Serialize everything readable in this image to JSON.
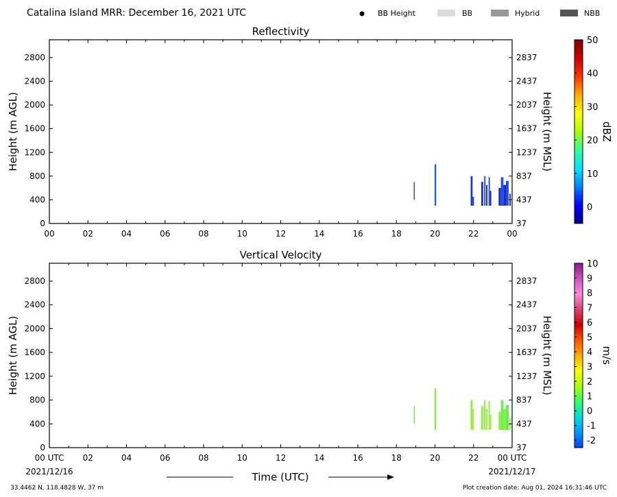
{
  "header": {
    "title": "Catalina Island MRR:  December 16, 2021 UTC",
    "legend": [
      {
        "label": "BB Height",
        "kind": "dot",
        "color": "#000000"
      },
      {
        "label": "BB",
        "kind": "swatch",
        "color": "#dcdcdc"
      },
      {
        "label": "Hybrid",
        "kind": "swatch",
        "color": "#999999"
      },
      {
        "label": "NBB",
        "kind": "swatch",
        "color": "#555555"
      }
    ]
  },
  "footer": {
    "left_time": "00 UTC",
    "left_date": "2021/12/16",
    "right_time": "00 UTC",
    "right_date": "2021/12/17",
    "xlabel": "Time (UTC)",
    "location": "33.4462 N, 118.4828 W, 37 m",
    "created": "Plot creation date: Aug 01, 2024 16:31:46 UTC"
  },
  "chart_data": [
    {
      "type": "heatmap",
      "title": "Reflectivity",
      "ylabel": "Height (m AGL)",
      "y2label": "Height (m MSL)",
      "xlim": [
        0,
        24
      ],
      "ylim": [
        0,
        3100
      ],
      "x_ticks": [
        "00",
        "02",
        "04",
        "06",
        "08",
        "10",
        "12",
        "14",
        "16",
        "18",
        "20",
        "22",
        "00"
      ],
      "y_ticks": [
        0,
        400,
        800,
        1200,
        1600,
        2000,
        2400,
        2800
      ],
      "y2_ticks": [
        "37",
        "437",
        "837",
        "1237",
        "1637",
        "2037",
        "2437",
        "2837"
      ],
      "colorbar": {
        "label": "dBZ",
        "min": -5,
        "max": 50,
        "ticks": [
          0,
          10,
          20,
          30,
          40,
          50
        ],
        "colors": [
          "#00008b",
          "#0000ff",
          "#0080ff",
          "#00e5ff",
          "#33ff99",
          "#aaff00",
          "#ffff00",
          "#ffaa00",
          "#ff3300",
          "#cc0000",
          "#800000"
        ]
      },
      "series": [
        {
          "start": 18.9,
          "end": 18.95,
          "base": 400,
          "top": 700,
          "color": "#1f3fd6"
        },
        {
          "start": 19.98,
          "end": 20.06,
          "base": 300,
          "top": 1000,
          "color": "#1560e0"
        },
        {
          "start": 21.85,
          "end": 21.95,
          "base": 300,
          "top": 800,
          "color": "#1d3ad0"
        },
        {
          "start": 21.95,
          "end": 22.02,
          "base": 300,
          "top": 450,
          "color": "#1d3ad0"
        },
        {
          "start": 22.4,
          "end": 22.5,
          "base": 300,
          "top": 700,
          "color": "#1d2ec8"
        },
        {
          "start": 22.55,
          "end": 22.62,
          "base": 300,
          "top": 800,
          "color": "#2050e8"
        },
        {
          "start": 22.65,
          "end": 22.72,
          "base": 300,
          "top": 650,
          "color": "#1d2ec8"
        },
        {
          "start": 22.78,
          "end": 22.85,
          "base": 300,
          "top": 780,
          "color": "#2050e8"
        },
        {
          "start": 22.85,
          "end": 22.92,
          "base": 300,
          "top": 550,
          "color": "#1d2ec8"
        },
        {
          "start": 23.3,
          "end": 23.42,
          "base": 300,
          "top": 600,
          "color": "#1d2ec8"
        },
        {
          "start": 23.42,
          "end": 23.55,
          "base": 300,
          "top": 780,
          "color": "#2050e8"
        },
        {
          "start": 23.55,
          "end": 23.68,
          "base": 300,
          "top": 650,
          "color": "#1d2ec8"
        },
        {
          "start": 23.68,
          "end": 23.82,
          "base": 300,
          "top": 720,
          "color": "#2050e8"
        },
        {
          "start": 23.86,
          "end": 23.93,
          "base": 300,
          "top": 500,
          "color": "#1d2ec8"
        }
      ]
    },
    {
      "type": "heatmap",
      "title": "Vertical Velocity",
      "ylabel": "Height (m AGL)",
      "y2label": "Height (m MSL)",
      "xlim": [
        0,
        24
      ],
      "ylim": [
        0,
        3100
      ],
      "x_ticks": [
        "00 UTC",
        "02",
        "04",
        "06",
        "08",
        "10",
        "12",
        "14",
        "16",
        "18",
        "20",
        "22",
        "00 UTC"
      ],
      "y_ticks": [
        0,
        400,
        800,
        1200,
        1600,
        2000,
        2400,
        2800
      ],
      "y2_ticks": [
        "37",
        "437",
        "837",
        "1237",
        "1637",
        "2037",
        "2437",
        "2837"
      ],
      "colorbar": {
        "label": "m/s",
        "min": -2.5,
        "max": 10,
        "ticks": [
          -2,
          -1,
          0,
          1,
          2,
          3,
          4,
          5,
          6,
          7,
          8,
          9,
          10
        ],
        "colors": [
          "#0040ff",
          "#0099ff",
          "#00dddd",
          "#33ff66",
          "#aaff00",
          "#ffff00",
          "#ffaa00",
          "#ff5500",
          "#cc0000",
          "#dd4477",
          "#ff88dd",
          "#cc55bb",
          "#8b1a8b"
        ]
      },
      "series": [
        {
          "start": 18.9,
          "end": 18.95,
          "base": 400,
          "top": 700,
          "color": "#7cf03a"
        },
        {
          "start": 19.98,
          "end": 20.06,
          "base": 300,
          "top": 1000,
          "color": "#7cf03a"
        },
        {
          "start": 21.85,
          "end": 21.95,
          "base": 300,
          "top": 800,
          "color": "#8ff03a"
        },
        {
          "start": 21.95,
          "end": 22.02,
          "base": 300,
          "top": 650,
          "color": "#a6f03a"
        },
        {
          "start": 22.4,
          "end": 22.5,
          "base": 300,
          "top": 700,
          "color": "#8ff03a"
        },
        {
          "start": 22.55,
          "end": 22.62,
          "base": 300,
          "top": 800,
          "color": "#7cf03a"
        },
        {
          "start": 22.65,
          "end": 22.72,
          "base": 300,
          "top": 650,
          "color": "#a6f03a"
        },
        {
          "start": 22.78,
          "end": 22.85,
          "base": 300,
          "top": 780,
          "color": "#8ff03a"
        },
        {
          "start": 22.85,
          "end": 22.92,
          "base": 300,
          "top": 550,
          "color": "#a6f03a"
        },
        {
          "start": 23.3,
          "end": 23.42,
          "base": 300,
          "top": 600,
          "color": "#8ff03a"
        },
        {
          "start": 23.42,
          "end": 23.55,
          "base": 300,
          "top": 800,
          "color": "#5ff05a"
        },
        {
          "start": 23.55,
          "end": 23.68,
          "base": 300,
          "top": 650,
          "color": "#8ff03a"
        },
        {
          "start": 23.68,
          "end": 23.82,
          "base": 300,
          "top": 720,
          "color": "#5ff05a"
        },
        {
          "start": 23.86,
          "end": 23.93,
          "base": 300,
          "top": 500,
          "color": "#a6f03a"
        }
      ]
    }
  ]
}
